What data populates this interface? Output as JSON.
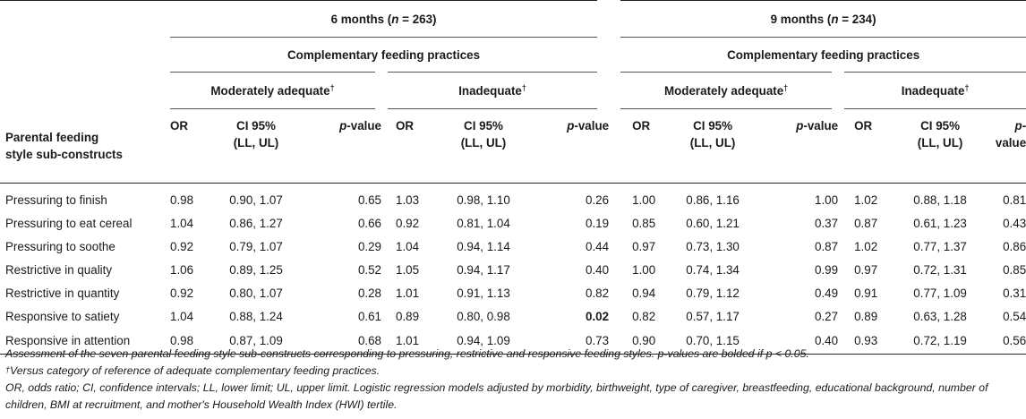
{
  "table": {
    "group_headers": [
      {
        "label_pre": "6 months (",
        "n_var": "n",
        "n_value": " = 263)"
      },
      {
        "label_pre": "9 months (",
        "n_var": "n",
        "n_value": " = 234)"
      }
    ],
    "practices_label": "Complementary feeding practices",
    "subgroups": [
      "Moderately adequate",
      "Inadequate"
    ],
    "dagger": "†",
    "row_header_line1": "Parental feeding",
    "row_header_line2": "style sub-constructs",
    "col_or": "OR",
    "col_ci_line1": "CI 95%",
    "col_ci_line2": "(LL, UL)",
    "col_p_italic": "p",
    "col_p_rest": "-value",
    "rows": [
      {
        "label": "Pressuring to finish",
        "cells": [
          "0.98",
          "0.90, 1.07",
          "0.65",
          "1.03",
          "0.98, 1.10",
          "0.26",
          "1.00",
          "0.86, 1.16",
          "1.00",
          "1.02",
          "0.88, 1.18",
          "0.81"
        ]
      },
      {
        "label": "Pressuring to eat cereal",
        "cells": [
          "1.04",
          "0.86, 1.27",
          "0.66",
          "0.92",
          "0.81, 1.04",
          "0.19",
          "0.85",
          "0.60, 1.21",
          "0.37",
          "0.87",
          "0.61, 1.23",
          "0.43"
        ]
      },
      {
        "label": "Pressuring to soothe",
        "cells": [
          "0.92",
          "0.79, 1.07",
          "0.29",
          "1.04",
          "0.94, 1.14",
          "0.44",
          "0.97",
          "0.73, 1.30",
          "0.87",
          "1.02",
          "0.77, 1.37",
          "0.86"
        ]
      },
      {
        "label": "Restrictive in quality",
        "cells": [
          "1.06",
          "0.89, 1.25",
          "0.52",
          "1.05",
          "0.94, 1.17",
          "0.40",
          "1.00",
          "0.74, 1.34",
          "0.99",
          "0.97",
          "0.72, 1.31",
          "0.85"
        ]
      },
      {
        "label": "Restrictive in quantity",
        "cells": [
          "0.92",
          "0.80, 1.07",
          "0.28",
          "1.01",
          "0.91, 1.13",
          "0.82",
          "0.94",
          "0.79, 1.12",
          "0.49",
          "0.91",
          "0.77, 1.09",
          "0.31"
        ]
      },
      {
        "label": "Responsive to satiety",
        "cells": [
          "1.04",
          "0.88, 1.24",
          "0.61",
          "0.89",
          "0.80, 0.98",
          "0.02",
          "0.82",
          "0.57, 1.17",
          "0.27",
          "0.89",
          "0.63, 1.28",
          "0.54"
        ],
        "bold_cells": [
          5
        ]
      },
      {
        "label": "Responsive in attention",
        "cells": [
          "0.98",
          "0.87, 1.09",
          "0.68",
          "1.01",
          "0.94, 1.09",
          "0.73",
          "0.90",
          "0.70, 1.15",
          "0.40",
          "0.93",
          "0.72, 1.19",
          "0.56"
        ]
      }
    ]
  },
  "notes": {
    "line1": "Assessment of the seven parental feeding style sub-constructs corresponding to pressuring, restrictive and responsive feeding styles. p-values are bolded if p < 0.05.",
    "line2_dagger": "†",
    "line2": "Versus category of reference of adequate complementary feeding practices.",
    "line3": "OR, odds ratio; CI, confidence intervals; LL, lower limit; UL, upper limit. Logistic regression models adjusted by morbidity, birthweight, type of caregiver, breastfeeding, educational background, number of children, BMI at recruitment, and mother's Household Wealth Index (HWI) tertile."
  }
}
